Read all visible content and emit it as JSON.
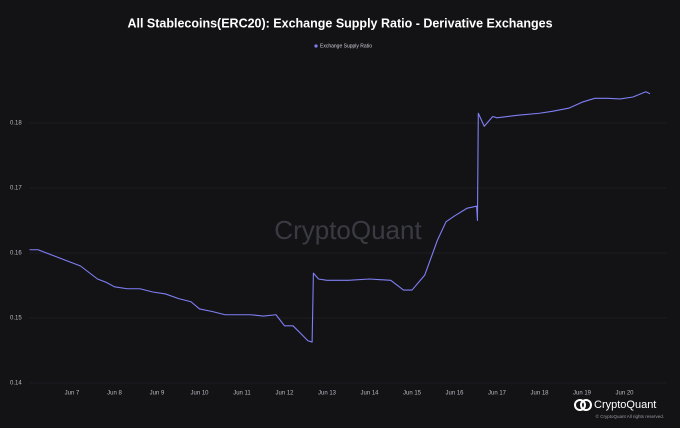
{
  "chart_data": {
    "type": "line",
    "title": "All Stablecoins(ERC20): Exchange Supply Ratio - Derivative Exchanges",
    "watermark": "CryptoQuant",
    "brand": "CryptoQuant",
    "copyright": "© CryptoQuant All rights reserved.",
    "x": [
      6.0,
      6.2,
      6.4,
      6.6,
      6.8,
      7.0,
      7.2,
      7.4,
      7.6,
      7.8,
      8.0,
      8.3,
      8.6,
      8.9,
      9.2,
      9.5,
      9.8,
      10.0,
      10.3,
      10.6,
      10.9,
      11.2,
      11.5,
      11.8,
      12.0,
      12.2,
      12.4,
      12.55,
      12.65,
      12.68,
      12.8,
      13.0,
      13.5,
      14.0,
      14.5,
      14.8,
      15.0,
      15.3,
      15.6,
      15.8,
      16.0,
      16.3,
      16.52,
      16.54,
      16.56,
      16.7,
      16.9,
      17.0,
      17.5,
      18.0,
      18.3,
      18.7,
      19.0,
      19.3,
      19.6,
      19.9,
      20.2,
      20.5,
      20.6
    ],
    "series": [
      {
        "name": "Exchange Supply Ratio",
        "color": "#7f7ff5",
        "values": [
          0.1605,
          0.1605,
          0.16,
          0.1595,
          0.159,
          0.1585,
          0.158,
          0.157,
          0.156,
          0.1555,
          0.1548,
          0.1545,
          0.1545,
          0.154,
          0.1537,
          0.153,
          0.1525,
          0.1514,
          0.151,
          0.1505,
          0.1505,
          0.1505,
          0.1503,
          0.1505,
          0.1488,
          0.1488,
          0.1475,
          0.1465,
          0.1463,
          0.1569,
          0.156,
          0.1558,
          0.1558,
          0.156,
          0.1558,
          0.1543,
          0.1543,
          0.1566,
          0.162,
          0.1648,
          0.1657,
          0.1669,
          0.1672,
          0.165,
          0.1815,
          0.1795,
          0.181,
          0.1808,
          0.1812,
          0.1815,
          0.1818,
          0.1823,
          0.1832,
          0.1838,
          0.1838,
          0.1837,
          0.184,
          0.1848,
          0.1845
        ]
      }
    ],
    "xlim": [
      6,
      21
    ],
    "xticks": [
      {
        "value": 7,
        "label": "Jun 7"
      },
      {
        "value": 8,
        "label": "Jun 8"
      },
      {
        "value": 9,
        "label": "Jun 9"
      },
      {
        "value": 10,
        "label": "Jun 10"
      },
      {
        "value": 11,
        "label": "Jun 11"
      },
      {
        "value": 12,
        "label": "Jun 12"
      },
      {
        "value": 13,
        "label": "Jun 13"
      },
      {
        "value": 14,
        "label": "Jun 14"
      },
      {
        "value": 15,
        "label": "Jun 15"
      },
      {
        "value": 16,
        "label": "Jun 16"
      },
      {
        "value": 17,
        "label": "Jun 17"
      },
      {
        "value": 18,
        "label": "Jun 18"
      },
      {
        "value": 19,
        "label": "Jun 19"
      },
      {
        "value": 20,
        "label": "Jun 20"
      }
    ],
    "ylim": [
      0.138,
      0.19
    ],
    "yticks": [
      0.14,
      0.15,
      0.16,
      0.17,
      0.18
    ],
    "grid": true
  }
}
